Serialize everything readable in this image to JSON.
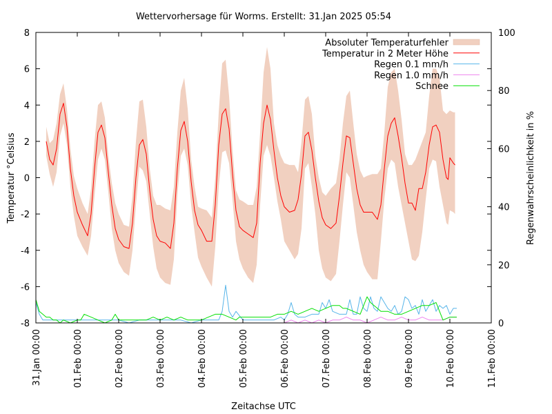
{
  "chart_data": {
    "type": "line",
    "title": "Wettervorhersage für Worms. Erstellt: 31.Jan 2025 05:54",
    "xlabel": "Zeitachse UTC",
    "ylabel": "Temperatur °Celsius",
    "y2label": "Regenwahrscheinlichkeit in %",
    "x_unit": "hours since 31.Jan 00:00 UTC",
    "xlim": [
      0,
      264
    ],
    "ylim": [
      -8,
      8
    ],
    "y2lim": [
      0,
      100
    ],
    "x_ticks": [
      {
        "value": 0,
        "label": "31.Jan 00:00"
      },
      {
        "value": 24,
        "label": "01.Feb 00:00"
      },
      {
        "value": 48,
        "label": "02.Feb 00:00"
      },
      {
        "value": 72,
        "label": "03.Feb 00:00"
      },
      {
        "value": 96,
        "label": "04.Feb 00:00"
      },
      {
        "value": 120,
        "label": "05.Feb 00:00"
      },
      {
        "value": 144,
        "label": "06.Feb 00:00"
      },
      {
        "value": 168,
        "label": "07.Feb 00:00"
      },
      {
        "value": 192,
        "label": "08.Feb 00:00"
      },
      {
        "value": 216,
        "label": "09.Feb 00:00"
      },
      {
        "value": 240,
        "label": "10.Feb 00:00"
      },
      {
        "value": 264,
        "label": "11.Feb 00:00"
      }
    ],
    "y_ticks": [
      8,
      6,
      4,
      2,
      0,
      -2,
      -4,
      -6,
      -8
    ],
    "y2_ticks": [
      100,
      80,
      60,
      40,
      20,
      0
    ],
    "grid": false,
    "legend_position": "top-right",
    "legend": [
      {
        "name": "Absoluter Temperaturfehler",
        "kind": "band",
        "color": "#f1d0c0"
      },
      {
        "name": "Temperatur in 2 Meter Höhe",
        "kind": "line",
        "color": "#ff0000"
      },
      {
        "name": "Regen 0.1 mm/h",
        "kind": "line",
        "color": "#56b4e9"
      },
      {
        "name": "Regen 1.0 mm/h",
        "kind": "line",
        "color": "#ee82ee"
      },
      {
        "name": "Schnee",
        "kind": "line",
        "color": "#00e000"
      }
    ],
    "temperature": {
      "name": "Temperatur in 2 Meter Höhe",
      "axis": "y",
      "x": [
        6,
        8,
        10,
        12,
        14,
        16,
        18,
        20,
        22,
        24,
        27,
        30,
        32,
        34,
        36,
        38,
        40,
        42,
        44,
        46,
        48,
        51,
        54,
        56,
        58,
        60,
        62,
        64,
        66,
        68,
        70,
        72,
        75,
        78,
        80,
        82,
        84,
        86,
        88,
        90,
        92,
        94,
        96,
        99,
        102,
        104,
        106,
        108,
        110,
        112,
        114,
        116,
        118,
        120,
        123,
        126,
        128,
        130,
        132,
        134,
        136,
        138,
        140,
        142,
        144,
        147,
        150,
        152,
        154,
        156,
        158,
        160,
        162,
        164,
        166,
        168,
        171,
        174,
        176,
        178,
        180,
        182,
        184,
        186,
        188,
        190,
        192,
        195,
        198,
        200,
        202,
        204,
        206,
        208,
        210,
        212,
        214,
        216,
        218,
        220,
        222,
        224,
        226,
        228,
        230,
        232,
        234,
        236,
        238,
        239,
        240,
        242,
        243
      ],
      "values": [
        2.0,
        1.0,
        0.7,
        1.6,
        3.5,
        4.1,
        2.8,
        0.5,
        -1.0,
        -1.9,
        -2.6,
        -3.2,
        -2.0,
        0.5,
        2.5,
        2.9,
        2.2,
        0.3,
        -1.5,
        -2.8,
        -3.4,
        -3.8,
        -3.9,
        -2.5,
        0.0,
        1.8,
        2.1,
        1.3,
        -0.7,
        -2.3,
        -3.2,
        -3.5,
        -3.6,
        -3.9,
        -2.5,
        0.5,
        2.6,
        3.1,
        2.0,
        -0.2,
        -1.8,
        -2.6,
        -2.9,
        -3.5,
        -3.5,
        -1.5,
        1.8,
        3.5,
        3.8,
        2.7,
        0.2,
        -1.8,
        -2.7,
        -2.9,
        -3.1,
        -3.3,
        -2.5,
        0.8,
        3.0,
        4.0,
        3.2,
        1.5,
        0.0,
        -1.0,
        -1.6,
        -1.9,
        -1.8,
        -1.2,
        0.2,
        2.3,
        2.5,
        1.5,
        0.0,
        -1.3,
        -2.2,
        -2.6,
        -2.8,
        -2.5,
        -1.0,
        0.8,
        2.3,
        2.2,
        0.8,
        -0.6,
        -1.5,
        -1.9,
        -1.9,
        -1.9,
        -2.3,
        -1.5,
        0.5,
        2.3,
        3.0,
        3.3,
        2.3,
        1.1,
        -0.3,
        -1.4,
        -1.4,
        -1.8,
        -0.6,
        -0.6,
        0.3,
        1.8,
        2.8,
        2.9,
        2.5,
        1.0,
        0.0,
        -0.1,
        1.1,
        0.8,
        0.7
      ]
    },
    "temperature_error_band": {
      "name": "Absoluter Temperaturfehler",
      "axis": "y",
      "x": [
        6,
        8,
        10,
        12,
        14,
        16,
        18,
        20,
        22,
        24,
        27,
        30,
        32,
        34,
        36,
        38,
        40,
        42,
        44,
        46,
        48,
        51,
        54,
        56,
        58,
        60,
        62,
        64,
        66,
        68,
        70,
        72,
        75,
        78,
        80,
        82,
        84,
        86,
        88,
        90,
        92,
        94,
        96,
        99,
        102,
        104,
        106,
        108,
        110,
        112,
        114,
        116,
        118,
        120,
        123,
        126,
        128,
        130,
        132,
        134,
        136,
        138,
        140,
        142,
        144,
        147,
        150,
        152,
        154,
        156,
        158,
        160,
        162,
        164,
        166,
        168,
        171,
        174,
        176,
        178,
        180,
        182,
        184,
        186,
        188,
        190,
        192,
        195,
        198,
        200,
        202,
        204,
        206,
        208,
        210,
        212,
        214,
        216,
        218,
        220,
        222,
        224,
        226,
        228,
        230,
        232,
        234,
        236,
        238,
        239,
        240,
        242,
        243
      ],
      "upper": [
        2.8,
        1.9,
        2.1,
        3.0,
        4.6,
        5.2,
        3.8,
        1.6,
        0.1,
        -0.6,
        -1.4,
        -2.0,
        -0.6,
        2.0,
        4.0,
        4.2,
        3.3,
        1.2,
        -0.3,
        -1.4,
        -2.0,
        -2.6,
        -2.7,
        -1.0,
        2.0,
        4.2,
        4.3,
        2.8,
        0.5,
        -1.0,
        -1.5,
        -1.5,
        -1.7,
        -1.8,
        -0.5,
        2.5,
        4.8,
        5.5,
        3.8,
        1.0,
        -0.5,
        -1.6,
        -1.7,
        -1.8,
        -2.2,
        0.0,
        3.6,
        6.3,
        6.5,
        4.5,
        1.5,
        -0.7,
        -1.2,
        -1.3,
        -1.5,
        -1.5,
        -0.5,
        2.5,
        5.8,
        7.2,
        6.0,
        3.0,
        1.8,
        1.2,
        0.8,
        0.7,
        0.7,
        0.3,
        2.0,
        4.3,
        4.5,
        3.5,
        1.2,
        0.0,
        -0.8,
        -1.0,
        -0.6,
        -0.3,
        1.0,
        3.0,
        4.5,
        4.8,
        3.0,
        1.3,
        0.4,
        0.0,
        0.1,
        0.2,
        0.2,
        0.5,
        2.5,
        5.0,
        5.8,
        6.0,
        4.8,
        3.2,
        1.3,
        0.7,
        0.7,
        1.0,
        1.5,
        2.0,
        2.5,
        4.5,
        6.0,
        6.0,
        5.5,
        3.7,
        3.5,
        3.6,
        3.7,
        3.6,
        3.6
      ],
      "lower": [
        1.2,
        0.2,
        -0.5,
        0.3,
        2.3,
        3.0,
        1.8,
        -0.5,
        -2.1,
        -3.2,
        -3.8,
        -4.3,
        -3.2,
        -1.0,
        1.0,
        1.6,
        1.0,
        -0.8,
        -2.8,
        -4.0,
        -4.7,
        -5.2,
        -5.4,
        -4.0,
        -1.5,
        0.6,
        0.4,
        -0.2,
        -2.0,
        -3.8,
        -5.0,
        -5.5,
        -5.8,
        -5.9,
        -4.5,
        -1.0,
        1.2,
        1.6,
        0.7,
        -1.5,
        -3.0,
        -4.4,
        -4.9,
        -5.5,
        -6.0,
        -3.8,
        -0.5,
        1.4,
        1.5,
        0.8,
        -1.2,
        -3.5,
        -4.5,
        -5.0,
        -5.5,
        -5.8,
        -4.8,
        -1.5,
        1.2,
        1.8,
        1.2,
        0.0,
        -1.3,
        -2.3,
        -3.5,
        -4.0,
        -4.5,
        -4.2,
        -2.8,
        0.5,
        0.8,
        -0.5,
        -2.0,
        -4.0,
        -5.0,
        -5.5,
        -5.7,
        -5.3,
        -3.5,
        -1.5,
        0.3,
        0.0,
        -1.5,
        -3.0,
        -4.0,
        -4.8,
        -5.2,
        -5.6,
        -5.6,
        -3.5,
        -1.2,
        0.5,
        1.0,
        0.8,
        -0.5,
        -1.5,
        -2.5,
        -3.5,
        -4.5,
        -4.6,
        -4.3,
        -3.0,
        -1.2,
        0.5,
        1.0,
        0.9,
        -0.5,
        -1.5,
        -2.5,
        -2.6,
        -1.8,
        -1.9,
        -2.0
      ]
    },
    "rain_01": {
      "name": "Regen 0.1 mm/h",
      "axis": "y2",
      "x": [
        0,
        2,
        4,
        8,
        12,
        16,
        20,
        24,
        30,
        36,
        42,
        48,
        54,
        60,
        66,
        72,
        78,
        84,
        90,
        96,
        102,
        106,
        108,
        110,
        112,
        114,
        116,
        120,
        126,
        132,
        138,
        142,
        144,
        146,
        148,
        150,
        152,
        156,
        160,
        164,
        166,
        168,
        170,
        172,
        176,
        180,
        182,
        184,
        186,
        188,
        190,
        192,
        194,
        196,
        198,
        200,
        202,
        204,
        206,
        208,
        210,
        212,
        214,
        216,
        218,
        220,
        222,
        224,
        226,
        228,
        230,
        232,
        234,
        236,
        238,
        240,
        242,
        244
      ],
      "values": [
        7,
        3,
        1,
        1,
        1,
        1,
        1,
        1,
        1,
        1,
        1,
        1,
        0,
        1,
        1,
        1,
        1,
        1,
        0,
        1,
        1,
        1,
        4,
        13,
        4,
        2,
        4,
        1,
        1,
        1,
        1,
        2,
        1,
        3,
        7,
        3,
        2,
        2,
        3,
        3,
        7,
        5,
        8,
        4,
        3,
        3,
        8,
        3,
        3,
        9,
        5,
        4,
        9,
        5,
        4,
        9,
        7,
        5,
        4,
        6,
        3,
        4,
        9,
        8,
        5,
        6,
        3,
        8,
        4,
        6,
        8,
        4,
        6,
        5,
        6,
        3,
        5,
        5
      ]
    },
    "rain_10": {
      "name": "Regen 1.0 mm/h",
      "axis": "y2",
      "x": [
        0,
        140,
        144,
        148,
        152,
        156,
        160,
        164,
        168,
        172,
        176,
        180,
        184,
        188,
        192,
        196,
        200,
        204,
        208,
        212,
        216,
        220,
        224,
        228,
        232,
        236,
        240,
        244
      ],
      "values": [
        0,
        0,
        0,
        1,
        0,
        1,
        0,
        1,
        0,
        1,
        1,
        2,
        1,
        1,
        0,
        1,
        2,
        1,
        1,
        2,
        1,
        1,
        2,
        1,
        1,
        1,
        2,
        2
      ]
    },
    "snow": {
      "name": "Schnee",
      "axis": "y2",
      "x": [
        0,
        2,
        4,
        6,
        8,
        10,
        12,
        14,
        16,
        20,
        24,
        26,
        28,
        32,
        36,
        40,
        44,
        46,
        48,
        50,
        52,
        56,
        60,
        64,
        68,
        72,
        76,
        80,
        84,
        88,
        96,
        100,
        104,
        108,
        112,
        116,
        118,
        120,
        124,
        128,
        132,
        136,
        140,
        144,
        148,
        152,
        156,
        160,
        164,
        168,
        172,
        176,
        178,
        180,
        184,
        188,
        192,
        194,
        196,
        198,
        200,
        204,
        208,
        212,
        216,
        220,
        224,
        228,
        232,
        236,
        240,
        242,
        244
      ],
      "values": [
        8,
        4,
        3,
        2,
        2,
        1,
        1,
        0,
        1,
        0,
        1,
        1,
        3,
        2,
        1,
        0,
        1,
        3,
        1,
        1,
        1,
        1,
        1,
        1,
        2,
        1,
        2,
        1,
        2,
        1,
        1,
        2,
        3,
        3,
        2,
        1,
        2,
        2,
        2,
        2,
        2,
        2,
        3,
        3,
        4,
        3,
        4,
        5,
        4,
        5,
        6,
        6,
        5,
        5,
        4,
        3,
        9,
        7,
        6,
        5,
        4,
        4,
        3,
        3,
        4,
        5,
        6,
        6,
        7,
        1,
        2,
        2,
        2
      ]
    }
  }
}
